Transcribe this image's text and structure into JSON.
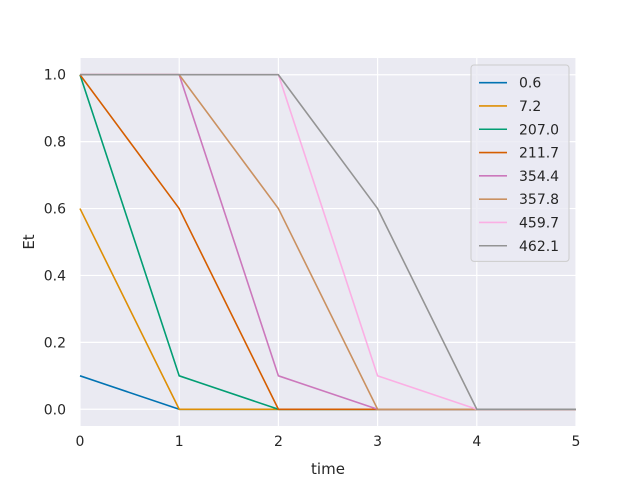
{
  "chart_data": {
    "type": "line",
    "title": "",
    "xlabel": "time",
    "ylabel": "Et",
    "xlim": [
      0,
      5
    ],
    "ylim": [
      -0.05,
      1.05
    ],
    "x_ticks": [
      "0",
      "1",
      "2",
      "3",
      "4",
      "5"
    ],
    "y_ticks": [
      "0.0",
      "0.2",
      "0.4",
      "0.6",
      "0.8",
      "1.0"
    ],
    "grid": true,
    "legend_position": "top-right",
    "x": [
      0,
      1,
      2,
      3,
      4,
      5
    ],
    "series": [
      {
        "name": "0.6",
        "color": "#0173b2",
        "values": [
          0.1,
          0.0,
          0.0,
          0.0,
          0.0,
          0.0
        ]
      },
      {
        "name": "7.2",
        "color": "#de8f05",
        "values": [
          0.6,
          0.0,
          0.0,
          0.0,
          0.0,
          0.0
        ]
      },
      {
        "name": "207.0",
        "color": "#029e73",
        "values": [
          1.0,
          0.1,
          0.0,
          0.0,
          0.0,
          0.0
        ]
      },
      {
        "name": "211.7",
        "color": "#d55e00",
        "values": [
          1.0,
          0.6,
          0.0,
          0.0,
          0.0,
          0.0
        ]
      },
      {
        "name": "354.4",
        "color": "#cc78bc",
        "values": [
          1.0,
          1.0,
          0.1,
          0.0,
          0.0,
          0.0
        ]
      },
      {
        "name": "357.8",
        "color": "#ca9161",
        "values": [
          1.0,
          1.0,
          0.6,
          0.0,
          0.0,
          0.0
        ]
      },
      {
        "name": "459.7",
        "color": "#fbafe4",
        "values": [
          1.0,
          1.0,
          1.0,
          0.1,
          0.0,
          0.0
        ]
      },
      {
        "name": "462.1",
        "color": "#949494",
        "values": [
          1.0,
          1.0,
          1.0,
          0.6,
          0.0,
          0.0
        ]
      }
    ]
  }
}
